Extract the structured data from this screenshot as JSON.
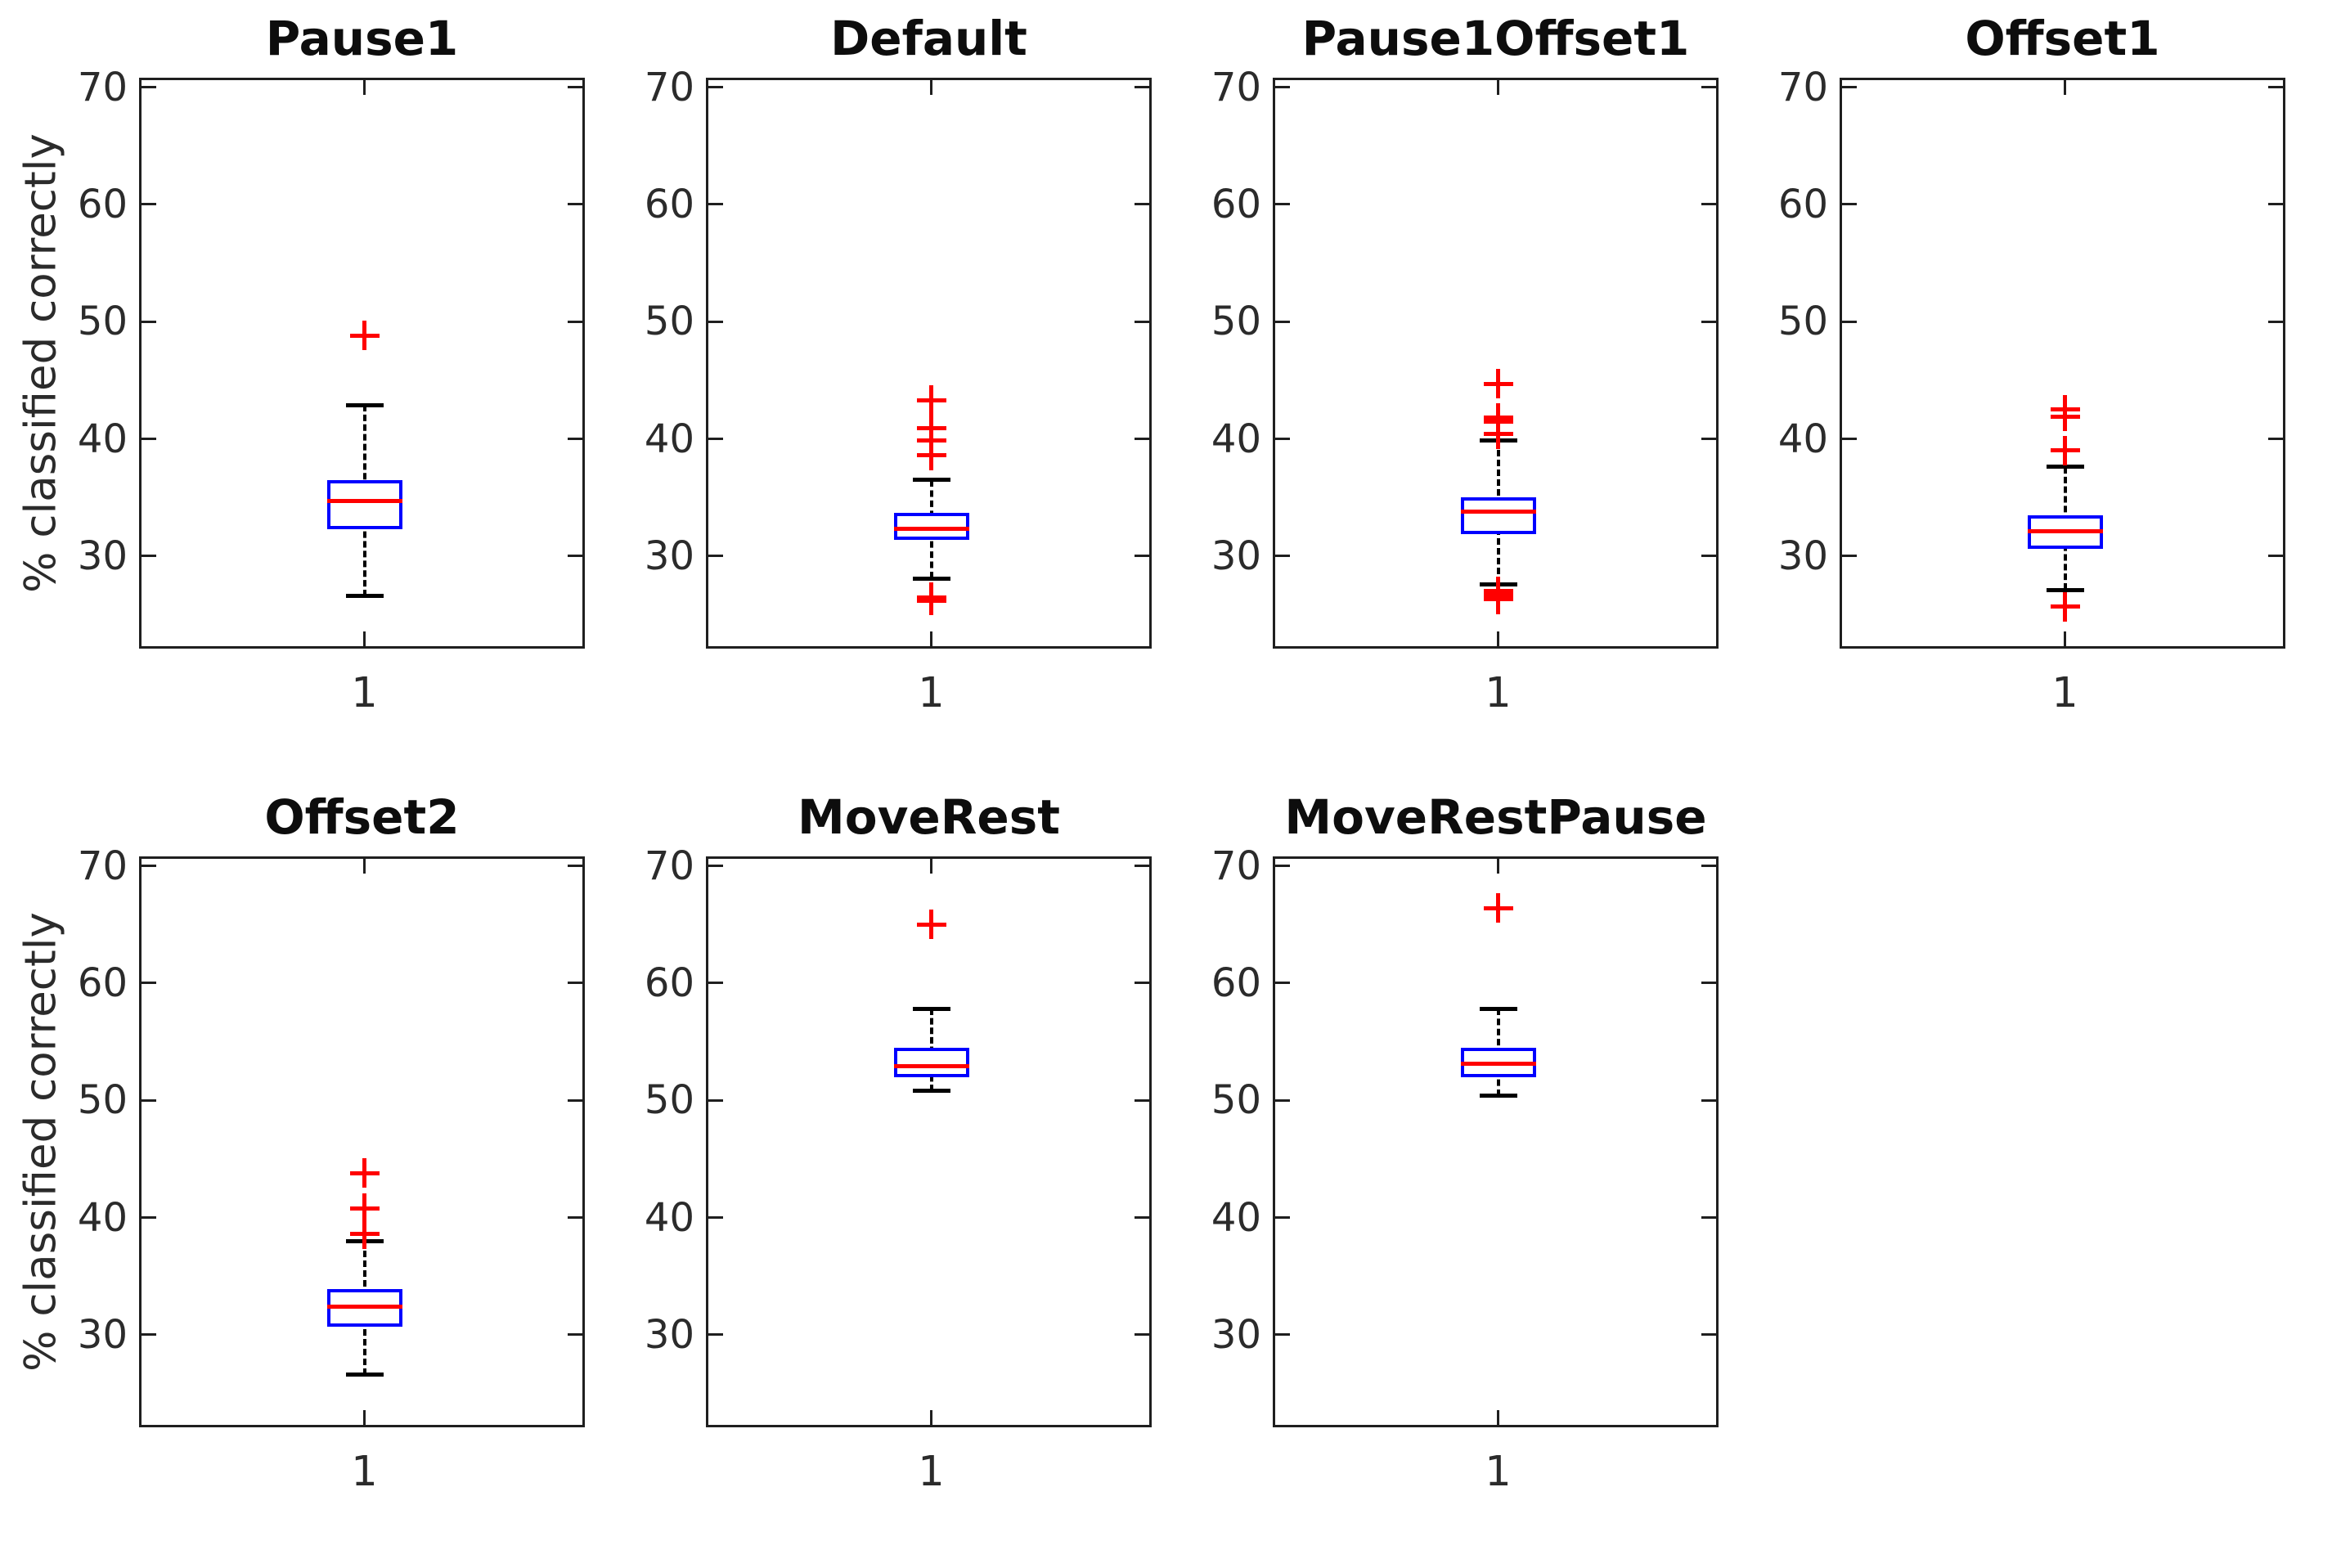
{
  "figure": {
    "background": "#ffffff"
  },
  "colors": {
    "box": "#0000ff",
    "median": "#ff0000",
    "outlier": "#ff0000",
    "whisker": "#000000",
    "axis": "#1f1f1f",
    "text": "#2b2b2b"
  },
  "chart_data": {
    "type": "boxplot",
    "title": "",
    "xlabel": "",
    "ylabel": "% classified correctly",
    "yticks": [
      30,
      40,
      50,
      60,
      70
    ],
    "ylim": [
      21.9,
      70.6
    ],
    "xtick_label": "1",
    "grid": false,
    "legend": null,
    "layout": "2 rows x 4 cols, 7 subplots used",
    "plots": [
      {
        "title": "Pause1",
        "x": "1",
        "median": 34.7,
        "q1": 32.3,
        "q3": 36.5,
        "whisker_low": 26.6,
        "whisker_high": 42.9,
        "outliers": [
          48.8
        ]
      },
      {
        "title": "Default",
        "x": "1",
        "median": 32.3,
        "q1": 31.4,
        "q3": 33.7,
        "whisker_low": 28.1,
        "whisker_high": 36.5,
        "outliers": [
          43.3,
          40.9,
          39.9,
          38.6,
          26.5,
          26.2
        ]
      },
      {
        "title": "Pause1Offset1",
        "x": "1",
        "median": 33.8,
        "q1": 31.9,
        "q3": 35.0,
        "whisker_low": 27.6,
        "whisker_high": 39.9,
        "outliers": [
          44.7,
          41.8,
          41.5,
          40.4,
          27.0,
          26.7,
          26.3
        ]
      },
      {
        "title": "Offset1",
        "x": "1",
        "median": 32.1,
        "q1": 30.6,
        "q3": 33.5,
        "whisker_low": 27.1,
        "whisker_high": 37.6,
        "outliers": [
          42.5,
          41.9,
          39.0,
          25.7
        ]
      },
      {
        "title": "Offset2",
        "x": "1",
        "median": 32.4,
        "q1": 30.7,
        "q3": 33.9,
        "whisker_low": 26.6,
        "whisker_high": 38.0,
        "outliers": [
          43.8,
          40.8,
          38.6
        ]
      },
      {
        "title": "MoveRest",
        "x": "1",
        "median": 52.9,
        "q1": 52.0,
        "q3": 54.5,
        "whisker_low": 50.8,
        "whisker_high": 57.8,
        "outliers": [
          65.0
        ]
      },
      {
        "title": "MoveRestPause",
        "x": "1",
        "median": 53.1,
        "q1": 52.0,
        "q3": 54.5,
        "whisker_low": 50.4,
        "whisker_high": 57.8,
        "outliers": [
          66.4
        ]
      }
    ]
  }
}
